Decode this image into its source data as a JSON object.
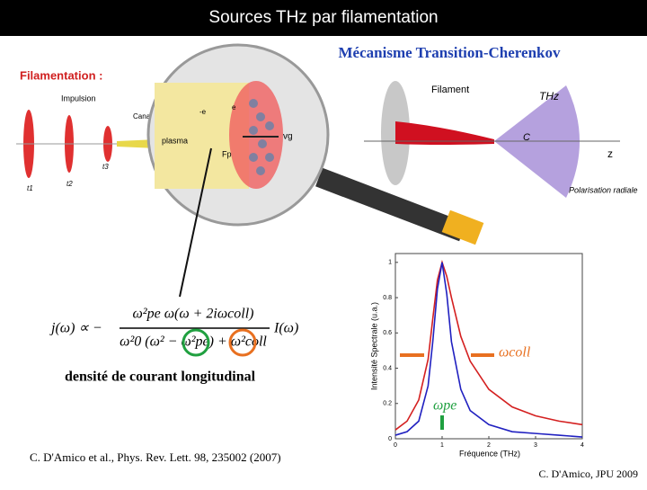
{
  "header": {
    "title": "Sources THz par filamentation"
  },
  "mechanism_title": "Mécanisme Transition-Cherenkov",
  "filamentation": {
    "title": "Filamentation :",
    "impulsion": "Impulsion",
    "canal": "Canal",
    "times": [
      "t1",
      "t2",
      "t3"
    ]
  },
  "zoom": {
    "plasma": "plasma",
    "electron_neg": "-e",
    "electron": "e",
    "vg": "vg",
    "fp": "Fp"
  },
  "cone": {
    "filament": "Filament",
    "thz": "THz",
    "c": "C",
    "z": "z",
    "polarisation": "Polarisation radiale"
  },
  "equation": {
    "lhs": "j(ω) ∝ −",
    "numerator": "ω²pe ω(ω + 2iωcoll)",
    "denominator": "ω²0 (ω² − ω²pe) + ω²coll",
    "rhs": "I(ω)"
  },
  "caption": "densité  de courant longitudinal",
  "citation": "C. D'Amico et al., Phys. Rev. Lett. 98, 235002 (2007)",
  "footer": "C. D'Amico, JPU 2009",
  "chart_data": {
    "type": "line",
    "x_label": "Fréquence (THz)",
    "y_label": "Intensité Spectrale (u.a.)",
    "x": [
      0,
      0.25,
      0.5,
      0.7,
      0.8,
      0.9,
      1,
      1.1,
      1.2,
      1.4,
      1.6,
      2,
      2.5,
      3,
      3.5,
      4
    ],
    "series": [
      {
        "color": "#d42020",
        "values": [
          0.05,
          0.1,
          0.22,
          0.45,
          0.68,
          0.9,
          1,
          0.92,
          0.8,
          0.58,
          0.44,
          0.28,
          0.18,
          0.13,
          0.1,
          0.08
        ]
      },
      {
        "color": "#2020c0",
        "values": [
          0.02,
          0.04,
          0.1,
          0.3,
          0.55,
          0.85,
          1,
          0.82,
          0.55,
          0.28,
          0.16,
          0.08,
          0.04,
          0.03,
          0.02,
          0.01
        ]
      }
    ],
    "annotations": [
      "ωcoll",
      "ωpe"
    ],
    "xlim": [
      0,
      4
    ],
    "ylim": [
      0,
      1.05
    ],
    "xticks": [
      0,
      1,
      2,
      3,
      4
    ],
    "yticks": [
      0,
      0.2,
      0.4,
      0.6,
      0.8,
      1
    ]
  }
}
